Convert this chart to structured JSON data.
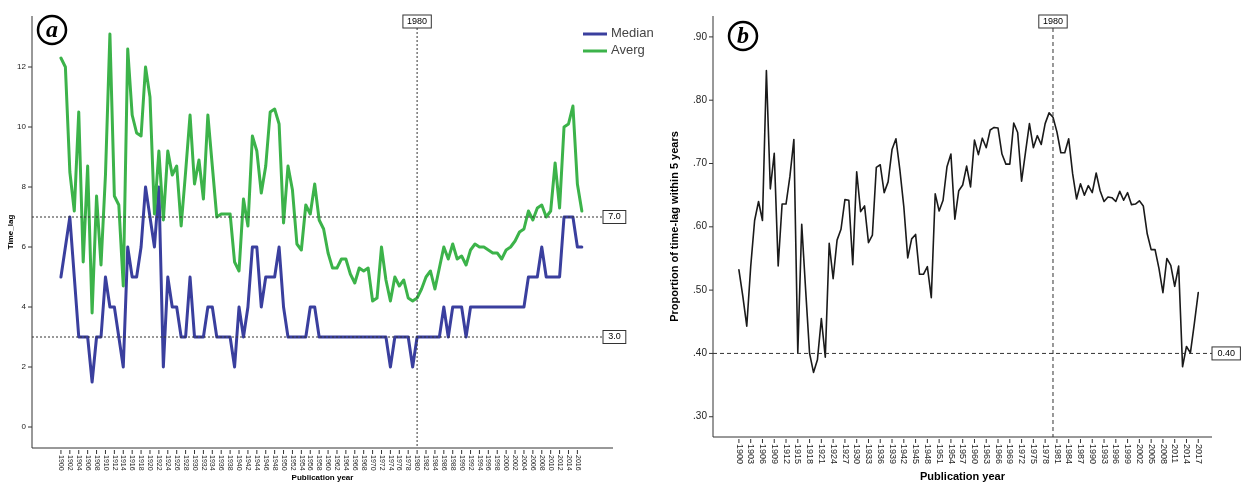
{
  "chart_data": [
    {
      "type": "line",
      "xlabel": "Publication year",
      "ylabel": "Time_lag",
      "annotations": [
        "a"
      ],
      "legend": "top right",
      "x": [
        1900,
        1901,
        1902,
        1903,
        1904,
        1905,
        1906,
        1907,
        1908,
        1909,
        1910,
        1911,
        1912,
        1913,
        1914,
        1915,
        1916,
        1917,
        1918,
        1919,
        1920,
        1921,
        1922,
        1923,
        1924,
        1925,
        1926,
        1927,
        1928,
        1929,
        1930,
        1931,
        1932,
        1933,
        1934,
        1935,
        1936,
        1937,
        1938,
        1939,
        1940,
        1941,
        1942,
        1943,
        1944,
        1945,
        1946,
        1947,
        1948,
        1949,
        1950,
        1951,
        1952,
        1953,
        1954,
        1955,
        1956,
        1957,
        1958,
        1959,
        1960,
        1961,
        1962,
        1963,
        1964,
        1965,
        1966,
        1967,
        1968,
        1969,
        1970,
        1971,
        1972,
        1973,
        1974,
        1975,
        1976,
        1977,
        1978,
        1979,
        1980,
        1981,
        1982,
        1983,
        1984,
        1985,
        1986,
        1987,
        1988,
        1989,
        1990,
        1991,
        1992,
        1993,
        1994,
        1995,
        1996,
        1997,
        1998,
        1999,
        2000,
        2001,
        2002,
        2003,
        2004,
        2005,
        2006,
        2007,
        2008,
        2009,
        2010,
        2011,
        2012,
        2013,
        2014,
        2015,
        2016,
        2017
      ],
      "series": [
        {
          "name": "Median",
          "color": "#3a3f9e",
          "values": [
            5,
            6,
            7,
            5,
            3,
            3,
            3,
            1.5,
            3,
            3,
            5,
            4,
            4,
            3,
            2,
            6,
            5,
            5,
            6,
            8,
            7,
            6,
            8,
            2,
            5,
            4,
            4,
            3,
            3,
            5,
            3,
            3,
            3,
            4,
            4,
            3,
            3,
            3,
            3,
            2,
            4,
            3,
            4,
            6,
            6,
            4,
            5,
            5,
            5,
            6,
            4,
            3,
            3,
            3,
            3,
            3,
            4,
            4,
            3,
            3,
            3,
            3,
            3,
            3,
            3,
            3,
            3,
            3,
            3,
            3,
            3,
            3,
            3,
            3,
            2,
            3,
            3,
            3,
            3,
            2,
            3,
            3,
            3,
            3,
            3,
            3,
            4,
            3,
            4,
            4,
            4,
            3,
            4,
            4,
            4,
            4,
            4,
            4,
            4,
            4,
            4,
            4,
            4,
            4,
            4,
            5,
            5,
            5,
            6,
            5,
            5,
            5,
            5,
            7,
            7,
            7,
            6,
            6
          ]
        },
        {
          "name": "Averg",
          "color": "#3cb34a",
          "values": [
            12.3,
            12.0,
            8.5,
            7.2,
            10.5,
            5.5,
            8.7,
            3.8,
            7.7,
            5.4,
            8.4,
            13.1,
            7.7,
            7.4,
            4.7,
            12.6,
            10.4,
            9.8,
            9.7,
            12.0,
            11.0,
            7.1,
            9.2,
            6.9,
            9.2,
            8.4,
            8.7,
            6.7,
            8.5,
            10.4,
            8.1,
            8.9,
            7.6,
            10.4,
            8.7,
            7.0,
            7.1,
            7.1,
            7.1,
            5.5,
            5.2,
            7.6,
            6.7,
            9.7,
            9.2,
            7.8,
            8.7,
            10.5,
            10.6,
            10.1,
            6.8,
            8.7,
            7.9,
            6.1,
            5.9,
            7.4,
            7.1,
            8.1,
            6.9,
            6.6,
            5.8,
            5.3,
            5.3,
            5.6,
            5.6,
            5.1,
            4.8,
            5.3,
            5.2,
            5.3,
            4.2,
            4.3,
            6.0,
            4.9,
            4.2,
            5.0,
            4.7,
            4.9,
            4.3,
            4.2,
            4.3,
            4.6,
            5.0,
            5.2,
            4.6,
            5.3,
            6.0,
            5.6,
            6.1,
            5.6,
            5.7,
            5.4,
            5.9,
            6.1,
            6.0,
            6.0,
            5.9,
            5.8,
            5.8,
            5.6,
            5.9,
            6.0,
            6.2,
            6.5,
            6.6,
            7.2,
            6.9,
            7.3,
            7.4,
            7.0,
            7.2,
            8.8,
            7.3,
            10.0,
            10.1,
            10.7,
            8.1,
            7.2
          ]
        }
      ],
      "xlim": [
        1893.5,
        2024
      ],
      "ylim": [
        -0.7,
        13.7
      ],
      "xticks": [
        1900,
        1902,
        1904,
        1906,
        1908,
        1910,
        1912,
        1914,
        1916,
        1918,
        1920,
        1922,
        1924,
        1926,
        1928,
        1930,
        1932,
        1934,
        1936,
        1938,
        1940,
        1942,
        1944,
        1946,
        1948,
        1950,
        1952,
        1954,
        1956,
        1958,
        1960,
        1962,
        1964,
        1966,
        1968,
        1970,
        1972,
        1974,
        1976,
        1978,
        1980,
        1982,
        1984,
        1986,
        1988,
        1990,
        1992,
        1994,
        1996,
        1998,
        2000,
        2002,
        2004,
        2006,
        2008,
        2010,
        2012,
        2014,
        2016
      ],
      "yticks": [
        0,
        2,
        4,
        6,
        8,
        10,
        12
      ],
      "ref_lines": [
        {
          "axis": "y",
          "value": 7,
          "label": "7.0",
          "line_style": "dotted"
        },
        {
          "axis": "y",
          "value": 3,
          "label": "3.0",
          "line_style": "dotted"
        },
        {
          "axis": "x",
          "value": 1980,
          "label": "1980",
          "line_style": "dotted"
        }
      ]
    },
    {
      "type": "line",
      "xlabel": "Publication year",
      "ylabel": "Proportion of time-lag within 5 years",
      "annotations": [
        "b"
      ],
      "x": [
        1900,
        1901,
        1902,
        1903,
        1904,
        1905,
        1906,
        1907,
        1908,
        1909,
        1910,
        1911,
        1912,
        1913,
        1914,
        1915,
        1916,
        1917,
        1918,
        1919,
        1920,
        1921,
        1922,
        1923,
        1924,
        1925,
        1926,
        1927,
        1928,
        1929,
        1930,
        1931,
        1932,
        1933,
        1934,
        1935,
        1936,
        1937,
        1938,
        1939,
        1940,
        1941,
        1942,
        1943,
        1944,
        1945,
        1946,
        1947,
        1948,
        1949,
        1950,
        1951,
        1952,
        1953,
        1954,
        1955,
        1956,
        1957,
        1958,
        1959,
        1960,
        1961,
        1962,
        1963,
        1964,
        1965,
        1966,
        1967,
        1968,
        1969,
        1970,
        1971,
        1972,
        1973,
        1974,
        1975,
        1976,
        1977,
        1978,
        1979,
        1980,
        1981,
        1982,
        1983,
        1984,
        1985,
        1986,
        1987,
        1988,
        1989,
        1990,
        1991,
        1992,
        1993,
        1994,
        1995,
        1996,
        1997,
        1998,
        1999,
        2000,
        2001,
        2002,
        2003,
        2004,
        2005,
        2006,
        2007,
        2008,
        2009,
        2010,
        2011,
        2012,
        2013,
        2014,
        2015,
        2016,
        2017
      ],
      "series": [
        {
          "color": "#1a1a1a",
          "values": [
            0.532,
            0.49,
            0.443,
            0.537,
            0.61,
            0.64,
            0.61,
            0.847,
            0.66,
            0.716,
            0.538,
            0.636,
            0.636,
            0.68,
            0.738,
            0.401,
            0.604,
            0.5,
            0.4,
            0.37,
            0.39,
            0.455,
            0.394,
            0.574,
            0.518,
            0.579,
            0.596,
            0.643,
            0.642,
            0.54,
            0.687,
            0.624,
            0.633,
            0.575,
            0.587,
            0.694,
            0.698,
            0.654,
            0.671,
            0.722,
            0.739,
            0.69,
            0.632,
            0.551,
            0.581,
            0.588,
            0.525,
            0.525,
            0.537,
            0.488,
            0.652,
            0.625,
            0.642,
            0.695,
            0.715,
            0.612,
            0.657,
            0.666,
            0.696,
            0.663,
            0.737,
            0.714,
            0.74,
            0.725,
            0.753,
            0.757,
            0.756,
            0.715,
            0.699,
            0.699,
            0.764,
            0.749,
            0.672,
            0.718,
            0.763,
            0.725,
            0.744,
            0.73,
            0.763,
            0.78,
            0.773,
            0.75,
            0.717,
            0.717,
            0.739,
            0.684,
            0.644,
            0.668,
            0.65,
            0.665,
            0.654,
            0.685,
            0.657,
            0.64,
            0.647,
            0.646,
            0.64,
            0.656,
            0.642,
            0.654,
            0.635,
            0.636,
            0.641,
            0.633,
            0.589,
            0.564,
            0.564,
            0.534,
            0.496,
            0.55,
            0.539,
            0.506,
            0.538,
            0.379,
            0.411,
            0.401,
            0.447,
            0.496
          ]
        }
      ],
      "xlim": [
        1893.4,
        2020.5
      ],
      "ylim": [
        0.268,
        0.933
      ],
      "xticks": [
        1900,
        1903,
        1906,
        1909,
        1912,
        1915,
        1918,
        1921,
        1924,
        1927,
        1930,
        1933,
        1936,
        1939,
        1942,
        1945,
        1948,
        1951,
        1954,
        1957,
        1960,
        1963,
        1966,
        1969,
        1972,
        1975,
        1978,
        1981,
        1984,
        1987,
        1990,
        1993,
        1996,
        1999,
        2002,
        2005,
        2008,
        2011,
        2014,
        2017
      ],
      "yticks": [
        {
          "value": 0.3,
          "label": ".30"
        },
        {
          "value": 0.4,
          "label": ".40"
        },
        {
          "value": 0.5,
          "label": ".50"
        },
        {
          "value": 0.6,
          "label": ".60"
        },
        {
          "value": 0.7,
          "label": ".70"
        },
        {
          "value": 0.8,
          "label": ".80"
        },
        {
          "value": 0.9,
          "label": ".90"
        }
      ],
      "ref_lines": [
        {
          "axis": "y",
          "value": 0.4,
          "label": "0.40",
          "line_style": "dashed"
        },
        {
          "axis": "x",
          "value": 1980,
          "label": "1980",
          "line_style": "dashed"
        }
      ]
    }
  ]
}
